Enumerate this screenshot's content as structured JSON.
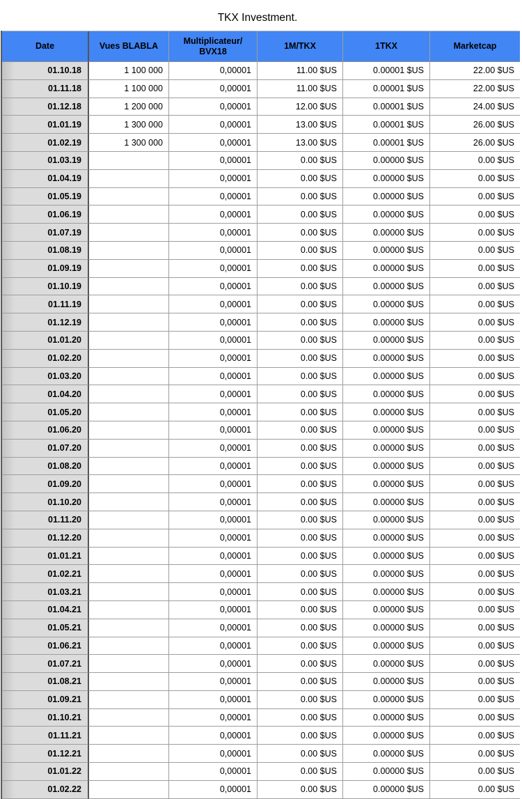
{
  "title": "TKX Investment.",
  "colors": {
    "header_bg": "#4285f4",
    "grid_line": "#9e9e9e",
    "freeze_divider": "#555555",
    "date_bg": "#dcdcdc",
    "date_bg_edge": "#c2c2c2",
    "text": "#000000",
    "outer_border": "#5a5a5a"
  },
  "table": {
    "columns": [
      {
        "key": "date",
        "label": "Date"
      },
      {
        "key": "vues",
        "label": "Vues BLABLA"
      },
      {
        "key": "mult",
        "label": "Multiplicateur/\nBVX18"
      },
      {
        "key": "m_tkx",
        "label": "1M/TKX"
      },
      {
        "key": "tkx",
        "label": "1TKX"
      },
      {
        "key": "marketcap",
        "label": "Marketcap"
      }
    ],
    "rows": [
      {
        "date": "01.10.18",
        "vues": "1 100 000",
        "mult": "0,00001",
        "m_tkx": "11.00 $US",
        "tkx": "0.00001 $US",
        "marketcap": "22.00 $US"
      },
      {
        "date": "01.11.18",
        "vues": "1 100 000",
        "mult": "0,00001",
        "m_tkx": "11.00 $US",
        "tkx": "0.00001 $US",
        "marketcap": "22.00 $US"
      },
      {
        "date": "01.12.18",
        "vues": "1 200 000",
        "mult": "0,00001",
        "m_tkx": "12.00 $US",
        "tkx": "0.00001 $US",
        "marketcap": "24.00 $US"
      },
      {
        "date": "01.01.19",
        "vues": "1 300 000",
        "mult": "0,00001",
        "m_tkx": "13.00 $US",
        "tkx": "0.00001 $US",
        "marketcap": "26.00 $US"
      },
      {
        "date": "01.02.19",
        "vues": "1 300 000",
        "mult": "0,00001",
        "m_tkx": "13.00 $US",
        "tkx": "0.00001 $US",
        "marketcap": "26.00 $US"
      },
      {
        "date": "01.03.19",
        "vues": "",
        "mult": "0,00001",
        "m_tkx": "0.00 $US",
        "tkx": "0.00000 $US",
        "marketcap": "0.00 $US"
      },
      {
        "date": "01.04.19",
        "vues": "",
        "mult": "0,00001",
        "m_tkx": "0.00 $US",
        "tkx": "0.00000 $US",
        "marketcap": "0.00 $US"
      },
      {
        "date": "01.05.19",
        "vues": "",
        "mult": "0,00001",
        "m_tkx": "0.00 $US",
        "tkx": "0.00000 $US",
        "marketcap": "0.00 $US"
      },
      {
        "date": "01.06.19",
        "vues": "",
        "mult": "0,00001",
        "m_tkx": "0.00 $US",
        "tkx": "0.00000 $US",
        "marketcap": "0.00 $US"
      },
      {
        "date": "01.07.19",
        "vues": "",
        "mult": "0,00001",
        "m_tkx": "0.00 $US",
        "tkx": "0.00000 $US",
        "marketcap": "0.00 $US"
      },
      {
        "date": "01.08.19",
        "vues": "",
        "mult": "0,00001",
        "m_tkx": "0.00 $US",
        "tkx": "0.00000 $US",
        "marketcap": "0.00 $US"
      },
      {
        "date": "01.09.19",
        "vues": "",
        "mult": "0,00001",
        "m_tkx": "0.00 $US",
        "tkx": "0.00000 $US",
        "marketcap": "0.00 $US"
      },
      {
        "date": "01.10.19",
        "vues": "",
        "mult": "0,00001",
        "m_tkx": "0.00 $US",
        "tkx": "0.00000 $US",
        "marketcap": "0.00 $US"
      },
      {
        "date": "01.11.19",
        "vues": "",
        "mult": "0,00001",
        "m_tkx": "0.00 $US",
        "tkx": "0.00000 $US",
        "marketcap": "0.00 $US"
      },
      {
        "date": "01.12.19",
        "vues": "",
        "mult": "0,00001",
        "m_tkx": "0.00 $US",
        "tkx": "0.00000 $US",
        "marketcap": "0.00 $US"
      },
      {
        "date": "01.01.20",
        "vues": "",
        "mult": "0,00001",
        "m_tkx": "0.00 $US",
        "tkx": "0.00000 $US",
        "marketcap": "0.00 $US"
      },
      {
        "date": "01.02.20",
        "vues": "",
        "mult": "0,00001",
        "m_tkx": "0.00 $US",
        "tkx": "0.00000 $US",
        "marketcap": "0.00 $US"
      },
      {
        "date": "01.03.20",
        "vues": "",
        "mult": "0,00001",
        "m_tkx": "0.00 $US",
        "tkx": "0.00000 $US",
        "marketcap": "0.00 $US"
      },
      {
        "date": "01.04.20",
        "vues": "",
        "mult": "0,00001",
        "m_tkx": "0.00 $US",
        "tkx": "0.00000 $US",
        "marketcap": "0.00 $US"
      },
      {
        "date": "01.05.20",
        "vues": "",
        "mult": "0,00001",
        "m_tkx": "0.00 $US",
        "tkx": "0.00000 $US",
        "marketcap": "0.00 $US"
      },
      {
        "date": "01.06.20",
        "vues": "",
        "mult": "0,00001",
        "m_tkx": "0.00 $US",
        "tkx": "0.00000 $US",
        "marketcap": "0.00 $US"
      },
      {
        "date": "01.07.20",
        "vues": "",
        "mult": "0,00001",
        "m_tkx": "0.00 $US",
        "tkx": "0.00000 $US",
        "marketcap": "0.00 $US"
      },
      {
        "date": "01.08.20",
        "vues": "",
        "mult": "0,00001",
        "m_tkx": "0.00 $US",
        "tkx": "0.00000 $US",
        "marketcap": "0.00 $US"
      },
      {
        "date": "01.09.20",
        "vues": "",
        "mult": "0,00001",
        "m_tkx": "0.00 $US",
        "tkx": "0.00000 $US",
        "marketcap": "0.00 $US"
      },
      {
        "date": "01.10.20",
        "vues": "",
        "mult": "0,00001",
        "m_tkx": "0.00 $US",
        "tkx": "0.00000 $US",
        "marketcap": "0.00 $US"
      },
      {
        "date": "01.11.20",
        "vues": "",
        "mult": "0,00001",
        "m_tkx": "0.00 $US",
        "tkx": "0.00000 $US",
        "marketcap": "0.00 $US"
      },
      {
        "date": "01.12.20",
        "vues": "",
        "mult": "0,00001",
        "m_tkx": "0.00 $US",
        "tkx": "0.00000 $US",
        "marketcap": "0.00 $US"
      },
      {
        "date": "01.01.21",
        "vues": "",
        "mult": "0,00001",
        "m_tkx": "0.00 $US",
        "tkx": "0.00000 $US",
        "marketcap": "0.00 $US"
      },
      {
        "date": "01.02.21",
        "vues": "",
        "mult": "0,00001",
        "m_tkx": "0.00 $US",
        "tkx": "0.00000 $US",
        "marketcap": "0.00 $US"
      },
      {
        "date": "01.03.21",
        "vues": "",
        "mult": "0,00001",
        "m_tkx": "0.00 $US",
        "tkx": "0.00000 $US",
        "marketcap": "0.00 $US"
      },
      {
        "date": "01.04.21",
        "vues": "",
        "mult": "0,00001",
        "m_tkx": "0.00 $US",
        "tkx": "0.00000 $US",
        "marketcap": "0.00 $US"
      },
      {
        "date": "01.05.21",
        "vues": "",
        "mult": "0,00001",
        "m_tkx": "0.00 $US",
        "tkx": "0.00000 $US",
        "marketcap": "0.00 $US"
      },
      {
        "date": "01.06.21",
        "vues": "",
        "mult": "0,00001",
        "m_tkx": "0.00 $US",
        "tkx": "0.00000 $US",
        "marketcap": "0.00 $US"
      },
      {
        "date": "01.07.21",
        "vues": "",
        "mult": "0,00001",
        "m_tkx": "0.00 $US",
        "tkx": "0.00000 $US",
        "marketcap": "0.00 $US"
      },
      {
        "date": "01.08.21",
        "vues": "",
        "mult": "0,00001",
        "m_tkx": "0.00 $US",
        "tkx": "0.00000 $US",
        "marketcap": "0.00 $US"
      },
      {
        "date": "01.09.21",
        "vues": "",
        "mult": "0,00001",
        "m_tkx": "0.00 $US",
        "tkx": "0.00000 $US",
        "marketcap": "0.00 $US"
      },
      {
        "date": "01.10.21",
        "vues": "",
        "mult": "0,00001",
        "m_tkx": "0.00 $US",
        "tkx": "0.00000 $US",
        "marketcap": "0.00 $US"
      },
      {
        "date": "01.11.21",
        "vues": "",
        "mult": "0,00001",
        "m_tkx": "0.00 $US",
        "tkx": "0.00000 $US",
        "marketcap": "0.00 $US"
      },
      {
        "date": "01.12.21",
        "vues": "",
        "mult": "0,00001",
        "m_tkx": "0.00 $US",
        "tkx": "0.00000 $US",
        "marketcap": "0.00 $US"
      },
      {
        "date": "01.01.22",
        "vues": "",
        "mult": "0,00001",
        "m_tkx": "0.00 $US",
        "tkx": "0.00000 $US",
        "marketcap": "0.00 $US"
      },
      {
        "date": "01.02.22",
        "vues": "",
        "mult": "0,00001",
        "m_tkx": "0.00 $US",
        "tkx": "0.00000 $US",
        "marketcap": "0.00 $US"
      }
    ]
  }
}
